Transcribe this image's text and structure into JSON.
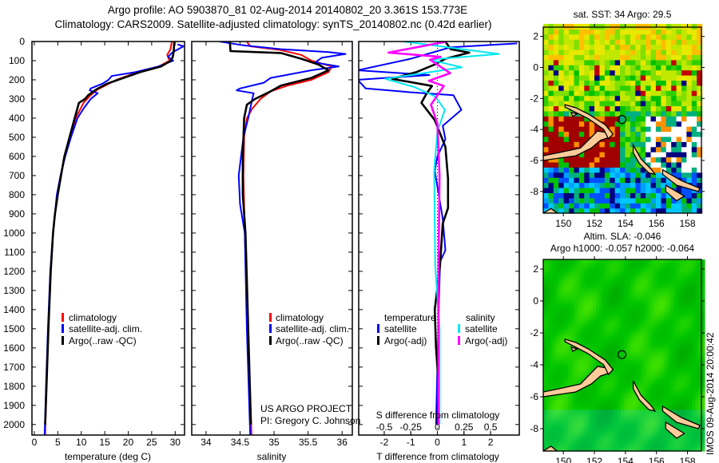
{
  "header": {
    "line1": "Argo profile: AO 5903870_81 02-Aug-2014 20140802_20 3.361S 153.773E",
    "line2": "Climatology: CARS2009. Satellite-adjusted climatology: synTS_20140802.nc (0.42d earlier)"
  },
  "credits": {
    "project": "US ARGO PROJECT",
    "pi": "PI: Gregory C. Johnson",
    "watermark": "IMOS 09-Aug-2014 20:00:42"
  },
  "colors": {
    "climatology": "#ff0000",
    "satellite": "#0000ff",
    "argo": "#000000",
    "s_satellite": "#00e8f0",
    "s_argo": "#ff00ff"
  },
  "chart_data": [
    {
      "type": "line",
      "name": "temperature-profile",
      "xlabel": "temperature (deg C)",
      "ylabel": "",
      "xlim": [
        -0.5,
        32
      ],
      "ylim": [
        0,
        2055
      ],
      "xticks": [
        "0",
        "5",
        "10",
        "15",
        "20",
        "25",
        "30"
      ],
      "yticks": [
        "0",
        "100",
        "200",
        "300",
        "400",
        "500",
        "600",
        "700",
        "800",
        "900",
        "1000",
        "1100",
        "1200",
        "1300",
        "1400",
        "1500",
        "1600",
        "1700",
        "1800",
        "1900",
        "2000"
      ],
      "legend": [
        "climatology",
        "satellite-adj. clim.",
        "Argo(..raw -QC)"
      ],
      "series": [
        {
          "name": "climatology",
          "color": "#ff0000",
          "points": [
            [
              0,
              29.3
            ],
            [
              40,
              29
            ],
            [
              70,
              28.3
            ],
            [
              100,
              28.8
            ],
            [
              130,
              26.5
            ],
            [
              160,
              22
            ],
            [
              200,
              17.5
            ],
            [
              250,
              13.5
            ],
            [
              280,
              12
            ],
            [
              320,
              10.5
            ],
            [
              400,
              8.8
            ],
            [
              500,
              7.6
            ],
            [
              600,
              6.5
            ],
            [
              700,
              5.6
            ],
            [
              800,
              4.9
            ],
            [
              900,
              4.4
            ],
            [
              1000,
              4
            ],
            [
              1200,
              3.5
            ],
            [
              1500,
              3
            ],
            [
              1800,
              2.6
            ],
            [
              2055,
              2.3
            ]
          ]
        },
        {
          "name": "satellite-adj. clim.",
          "color": "#0000ff",
          "points": [
            [
              15,
              30.5
            ],
            [
              25,
              31.8
            ],
            [
              55,
              29.5
            ],
            [
              80,
              28.5
            ],
            [
              100,
              29.6
            ],
            [
              130,
              26.5
            ],
            [
              160,
              21.5
            ],
            [
              180,
              16.5
            ],
            [
              200,
              15.8
            ],
            [
              220,
              14.5
            ],
            [
              245,
              12
            ],
            [
              255,
              11.8
            ],
            [
              270,
              13.5
            ],
            [
              300,
              12
            ],
            [
              350,
              10.5
            ],
            [
              400,
              9.2
            ],
            [
              500,
              7.8
            ],
            [
              600,
              6.6
            ],
            [
              700,
              5.6
            ],
            [
              800,
              4.8
            ],
            [
              900,
              4.4
            ],
            [
              1000,
              4
            ],
            [
              1200,
              3.4
            ],
            [
              1500,
              2.9
            ],
            [
              1800,
              2.5
            ],
            [
              2055,
              2.2
            ]
          ]
        },
        {
          "name": "Argo(..raw -QC)",
          "color": "#000000",
          "points": [
            [
              0,
              29.8
            ],
            [
              50,
              29.7
            ],
            [
              80,
              29.5
            ],
            [
              100,
              29.1
            ],
            [
              130,
              27
            ],
            [
              160,
              22.5
            ],
            [
              190,
              19
            ],
            [
              220,
              15.5
            ],
            [
              250,
              13.2
            ],
            [
              280,
              11.5
            ],
            [
              300,
              10.8
            ],
            [
              320,
              9.5
            ],
            [
              400,
              8.6
            ],
            [
              500,
              7.5
            ],
            [
              600,
              6.4
            ],
            [
              700,
              5.7
            ],
            [
              800,
              5
            ],
            [
              900,
              4.4
            ],
            [
              1000,
              4
            ],
            [
              1200,
              3.5
            ],
            [
              1500,
              3
            ],
            [
              1800,
              2.6
            ],
            [
              2000,
              2.3
            ]
          ]
        }
      ]
    },
    {
      "type": "line",
      "name": "salinity-profile",
      "xlabel": "salinity",
      "xlim": [
        33.79,
        36.15
      ],
      "ylim": [
        0,
        2055
      ],
      "xticks": [
        "34",
        "34.5",
        "35",
        "35.5",
        "36"
      ],
      "legend": [
        "climatology",
        "satellite-adj. clim.",
        "Argo(..raw -QC)"
      ],
      "series": [
        {
          "name": "climatology",
          "color": "#ff0000",
          "points": [
            [
              0,
              34.6
            ],
            [
              25,
              34.65
            ],
            [
              45,
              35.1
            ],
            [
              70,
              35.4
            ],
            [
              100,
              35.55
            ],
            [
              130,
              35.85
            ],
            [
              160,
              35.8
            ],
            [
              200,
              35.55
            ],
            [
              230,
              35.2
            ],
            [
              260,
              34.95
            ],
            [
              300,
              34.8
            ],
            [
              350,
              34.68
            ],
            [
              400,
              34.6
            ],
            [
              500,
              34.56
            ],
            [
              700,
              34.55
            ],
            [
              1000,
              34.57
            ],
            [
              1500,
              34.61
            ],
            [
              2055,
              34.67
            ]
          ]
        },
        {
          "name": "satellite-adj. clim.",
          "color": "#0000ff",
          "points": [
            [
              0,
              34.2
            ],
            [
              20,
              34.55
            ],
            [
              40,
              35.1
            ],
            [
              55,
              35.8
            ],
            [
              65,
              36.05
            ],
            [
              85,
              35.7
            ],
            [
              110,
              35.6
            ],
            [
              130,
              35.95
            ],
            [
              150,
              35.55
            ],
            [
              190,
              34.95
            ],
            [
              215,
              34.85
            ],
            [
              245,
              34.5
            ],
            [
              255,
              34.45
            ],
            [
              270,
              34.7
            ],
            [
              300,
              34.68
            ],
            [
              400,
              34.62
            ],
            [
              500,
              34.55
            ],
            [
              700,
              34.48
            ],
            [
              850,
              34.5
            ],
            [
              1000,
              34.57
            ],
            [
              1500,
              34.6
            ],
            [
              2055,
              34.65
            ]
          ]
        },
        {
          "name": "Argo(..raw -QC)",
          "color": "#000000",
          "points": [
            [
              0,
              34.35
            ],
            [
              50,
              34.36
            ],
            [
              60,
              35.1
            ],
            [
              90,
              35.4
            ],
            [
              120,
              35.65
            ],
            [
              150,
              35.8
            ],
            [
              190,
              35.55
            ],
            [
              230,
              35.1
            ],
            [
              260,
              34.95
            ],
            [
              300,
              34.72
            ],
            [
              330,
              34.6
            ],
            [
              400,
              34.56
            ],
            [
              600,
              34.54
            ],
            [
              800,
              34.54
            ],
            [
              1000,
              34.58
            ],
            [
              1500,
              34.62
            ],
            [
              2000,
              34.66
            ]
          ]
        }
      ]
    },
    {
      "type": "line",
      "name": "difference-profile",
      "xlabel": "T difference from climatology",
      "x2label": "S difference from climatology",
      "xlim": [
        -2.96,
        3.08
      ],
      "ylim": [
        0,
        2055
      ],
      "xticks": [
        "-2",
        "-1",
        "0",
        "1",
        "2"
      ],
      "x2ticks": [
        "-0.5",
        "-0.25",
        "0",
        "0.25",
        "0.5"
      ],
      "legend_left_title": "temperature",
      "legend_right_title": "salinity",
      "legend_left": [
        "satellite",
        "Argo(-adj)"
      ],
      "legend_right": [
        "satellite",
        "Argo(-adj)"
      ],
      "series": [
        {
          "name": "temperature satellite",
          "color": "#0000ff",
          "unit": "T",
          "points": [
            [
              10,
              3
            ],
            [
              30,
              0.5
            ],
            [
              50,
              0
            ],
            [
              90,
              -1
            ],
            [
              150,
              -3
            ],
            [
              175,
              -0.3
            ],
            [
              200,
              -3
            ],
            [
              245,
              -2.7
            ],
            [
              265,
              -1
            ],
            [
              280,
              0.6
            ],
            [
              357,
              0.9
            ],
            [
              440,
              0.2
            ],
            [
              510,
              0.3
            ],
            [
              600,
              0
            ],
            [
              675,
              -0.1
            ],
            [
              925,
              0.2
            ],
            [
              1090,
              0.3
            ],
            [
              1150,
              0.1
            ],
            [
              1400,
              0.05
            ],
            [
              1700,
              0
            ],
            [
              2000,
              -0.05
            ]
          ]
        },
        {
          "name": "temperature Argo(-adj)",
          "color": "#000000",
          "unit": "T",
          "points": [
            [
              0,
              0.3
            ],
            [
              40,
              0.5
            ],
            [
              58,
              1.2
            ],
            [
              90,
              0.3
            ],
            [
              120,
              -0.1
            ],
            [
              160,
              -0.8
            ],
            [
              195,
              -1.7
            ],
            [
              232,
              -0.2
            ],
            [
              270,
              -0.4
            ],
            [
              320,
              -0.6
            ],
            [
              410,
              -0.1
            ],
            [
              550,
              0.3
            ],
            [
              715,
              0.4
            ],
            [
              870,
              0.4
            ],
            [
              950,
              0.2
            ],
            [
              1170,
              0.1
            ],
            [
              1400,
              -0.1
            ],
            [
              1600,
              -0.05
            ],
            [
              1800,
              0.05
            ],
            [
              2000,
              0
            ]
          ]
        },
        {
          "name": "salinity satellite",
          "color": "#00e8f0",
          "unit": "S",
          "points": [
            [
              0,
              -0.32
            ],
            [
              30,
              0.1
            ],
            [
              65,
              0.58
            ],
            [
              95,
              -0.07
            ],
            [
              135,
              0.23
            ],
            [
              195,
              -0.49
            ],
            [
              237,
              -0.22
            ],
            [
              287,
              -0.02
            ],
            [
              357,
              0.07
            ],
            [
              470,
              0
            ],
            [
              675,
              -0.03
            ],
            [
              1170,
              -0.02
            ],
            [
              1500,
              0.02
            ],
            [
              2000,
              0.02
            ]
          ]
        },
        {
          "name": "salinity Argo(-adj)",
          "color": "#ff00ff",
          "unit": "S",
          "points": [
            [
              0,
              0.09
            ],
            [
              58,
              -0.46
            ],
            [
              80,
              0.03
            ],
            [
              95,
              -0.07
            ],
            [
              165,
              0.12
            ],
            [
              205,
              -0.08
            ],
            [
              232,
              0.06
            ],
            [
              330,
              -0.06
            ],
            [
              430,
              0
            ],
            [
              700,
              0.02
            ],
            [
              1200,
              0.01
            ],
            [
              2000,
              0.01
            ]
          ]
        }
      ]
    },
    {
      "type": "heatmap",
      "name": "sst-map",
      "title": "sat. SST: 34 Argo: 29.5",
      "xlim": [
        148.7,
        158.9
      ],
      "ylim": [
        -9.4,
        2.6
      ],
      "xticks": [
        "150",
        "152",
        "154",
        "156",
        "158"
      ],
      "yticks": [
        "2",
        "0",
        "-2",
        "-4",
        "-6",
        "-8"
      ],
      "argo_position": {
        "lon": 153.773,
        "lat": -3.361
      }
    },
    {
      "type": "heatmap",
      "name": "sla-map",
      "title": "Altim. SLA: -0.046",
      "subtitle": "Argo h1000: -0.057 h2000: -0.064",
      "xlim": [
        148.7,
        158.9
      ],
      "ylim": [
        -9.4,
        2.6
      ],
      "xticks": [
        "150",
        "152",
        "154",
        "156",
        "158"
      ],
      "yticks": [
        "2",
        "0",
        "-2",
        "-4",
        "-6",
        "-8"
      ],
      "argo_position": {
        "lon": 153.773,
        "lat": -3.361
      }
    }
  ]
}
